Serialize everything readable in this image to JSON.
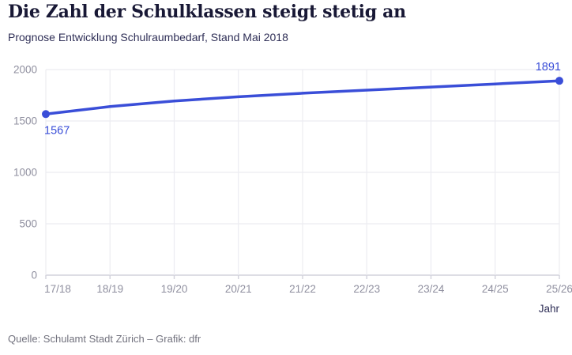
{
  "header": {
    "title": "Die Zahl der Schulklassen steigt stetig an",
    "subtitle": "Prognose Entwicklung Schulraumbedarf, Stand Mai 2018"
  },
  "chart_data": {
    "type": "line",
    "title": "Die Zahl der Schulklassen steigt stetig an",
    "subtitle": "Prognose Entwicklung Schulraumbedarf, Stand Mai 2018",
    "categories": [
      "17/18",
      "18/19",
      "19/20",
      "20/21",
      "21/22",
      "22/23",
      "23/24",
      "24/25",
      "25/26"
    ],
    "values": [
      1567,
      1640,
      1695,
      1735,
      1770,
      1800,
      1830,
      1860,
      1891
    ],
    "labeled_points": [
      {
        "category": "17/18",
        "value": 1567,
        "label": "1567",
        "placement": "below-start"
      },
      {
        "category": "25/26",
        "value": 1891,
        "label": "1891",
        "placement": "above-end"
      }
    ],
    "xlabel": "Jahr",
    "ylabel": "",
    "ylim": [
      0,
      2000
    ],
    "yticks": [
      0,
      500,
      1000,
      1500,
      2000
    ],
    "grid": true,
    "legend": "none"
  },
  "colors": {
    "accent": "#3a4ed8",
    "title": "#181835",
    "subtitle": "#2e2e56",
    "axis_text": "#8f8f9f",
    "grid": "#ececf1",
    "axis_line": "#d2d2dc",
    "background": "#ffffff",
    "source_text": "#72727e"
  },
  "footer": {
    "source": "Quelle: Schulamt Stadt Zürich – Grafik: dfr"
  }
}
